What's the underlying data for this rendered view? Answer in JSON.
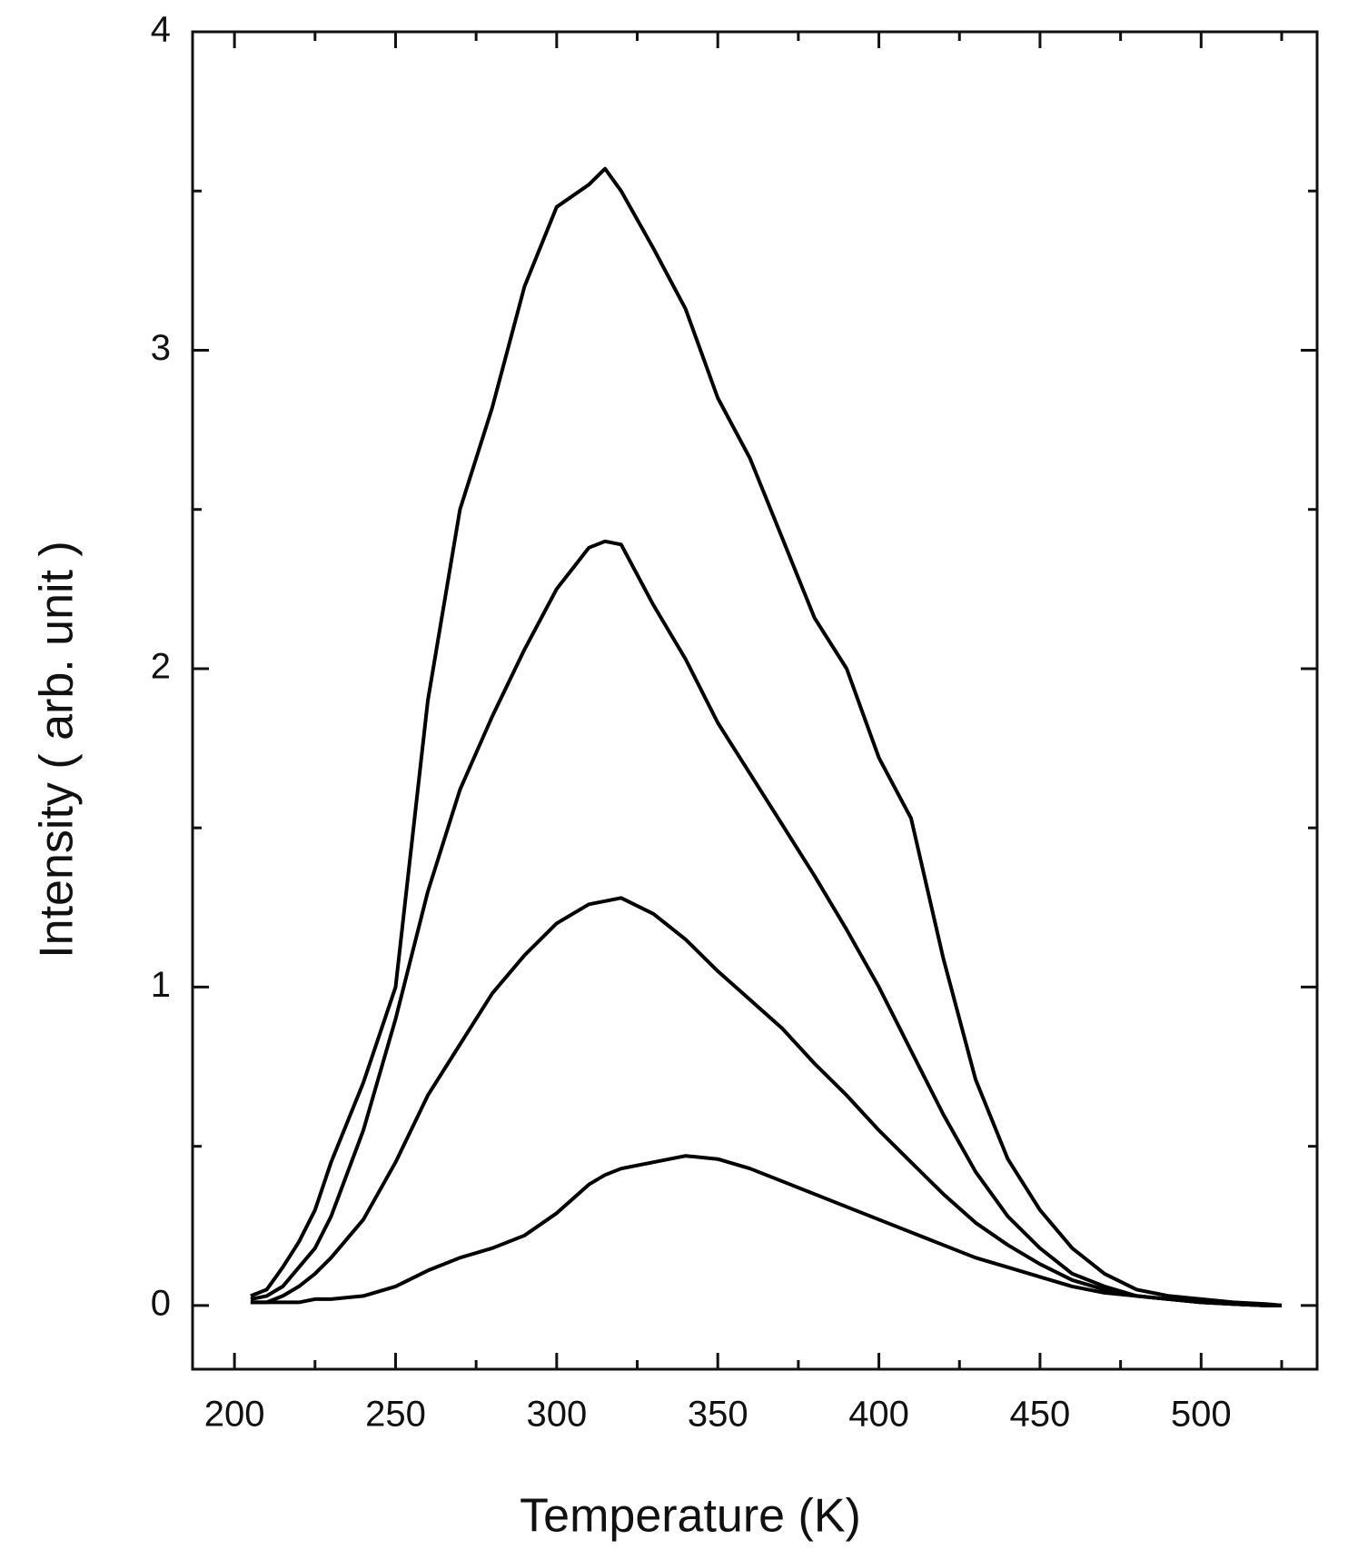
{
  "chart_data": {
    "type": "line",
    "xlabel": "Temperature (K)",
    "ylabel": "Intensity ( arb. unit )",
    "x": [
      205,
      210,
      215,
      220,
      225,
      230,
      240,
      250,
      260,
      270,
      280,
      290,
      300,
      310,
      315,
      320,
      330,
      340,
      350,
      360,
      370,
      380,
      390,
      400,
      410,
      420,
      430,
      440,
      450,
      460,
      470,
      480,
      490,
      500,
      510,
      520,
      525
    ],
    "series": [
      {
        "color": "#000000",
        "values": [
          0.03,
          0.05,
          0.12,
          0.2,
          0.3,
          0.45,
          0.7,
          1.0,
          1.9,
          2.5,
          2.82,
          3.2,
          3.45,
          3.52,
          3.57,
          3.5,
          3.32,
          3.13,
          2.85,
          2.66,
          2.41,
          2.16,
          2.0,
          1.72,
          1.53,
          1.09,
          0.71,
          0.46,
          0.3,
          0.18,
          0.1,
          0.05,
          0.03,
          0.02,
          0.01,
          0.005,
          0
        ]
      },
      {
        "color": "#000000",
        "values": [
          0.02,
          0.03,
          0.06,
          0.12,
          0.18,
          0.28,
          0.55,
          0.9,
          1.3,
          1.62,
          1.85,
          2.06,
          2.25,
          2.38,
          2.4,
          2.39,
          2.2,
          2.03,
          1.83,
          1.67,
          1.51,
          1.35,
          1.18,
          1.0,
          0.8,
          0.6,
          0.42,
          0.28,
          0.18,
          0.1,
          0.06,
          0.03,
          0.02,
          0.01,
          0.005,
          0,
          0
        ]
      },
      {
        "color": "#000000",
        "values": [
          0.01,
          0.01,
          0.03,
          0.06,
          0.1,
          0.15,
          0.27,
          0.45,
          0.66,
          0.82,
          0.98,
          1.1,
          1.2,
          1.26,
          1.27,
          1.28,
          1.23,
          1.15,
          1.05,
          0.96,
          0.87,
          0.76,
          0.66,
          0.55,
          0.45,
          0.35,
          0.26,
          0.19,
          0.13,
          0.08,
          0.05,
          0.03,
          0.02,
          0.01,
          0.005,
          0,
          0
        ]
      },
      {
        "color": "#000000",
        "values": [
          0.01,
          0.01,
          0.01,
          0.01,
          0.02,
          0.02,
          0.03,
          0.06,
          0.11,
          0.15,
          0.18,
          0.22,
          0.29,
          0.38,
          0.41,
          0.43,
          0.45,
          0.47,
          0.46,
          0.43,
          0.39,
          0.35,
          0.31,
          0.27,
          0.23,
          0.19,
          0.15,
          0.12,
          0.09,
          0.06,
          0.04,
          0.03,
          0.02,
          0.01,
          0.005,
          0,
          0
        ]
      }
    ],
    "xlim": [
      187,
      536
    ],
    "ylim": [
      -0.2,
      4
    ],
    "xticks": [
      200,
      250,
      300,
      350,
      400,
      450,
      500
    ],
    "xminorticks": [
      225,
      275,
      325,
      375,
      425,
      475,
      525
    ],
    "yticks": [
      0,
      1,
      2,
      3,
      4
    ],
    "yminorticks": [
      0.5,
      1.5,
      2.5,
      3.5
    ],
    "grid": false
  }
}
